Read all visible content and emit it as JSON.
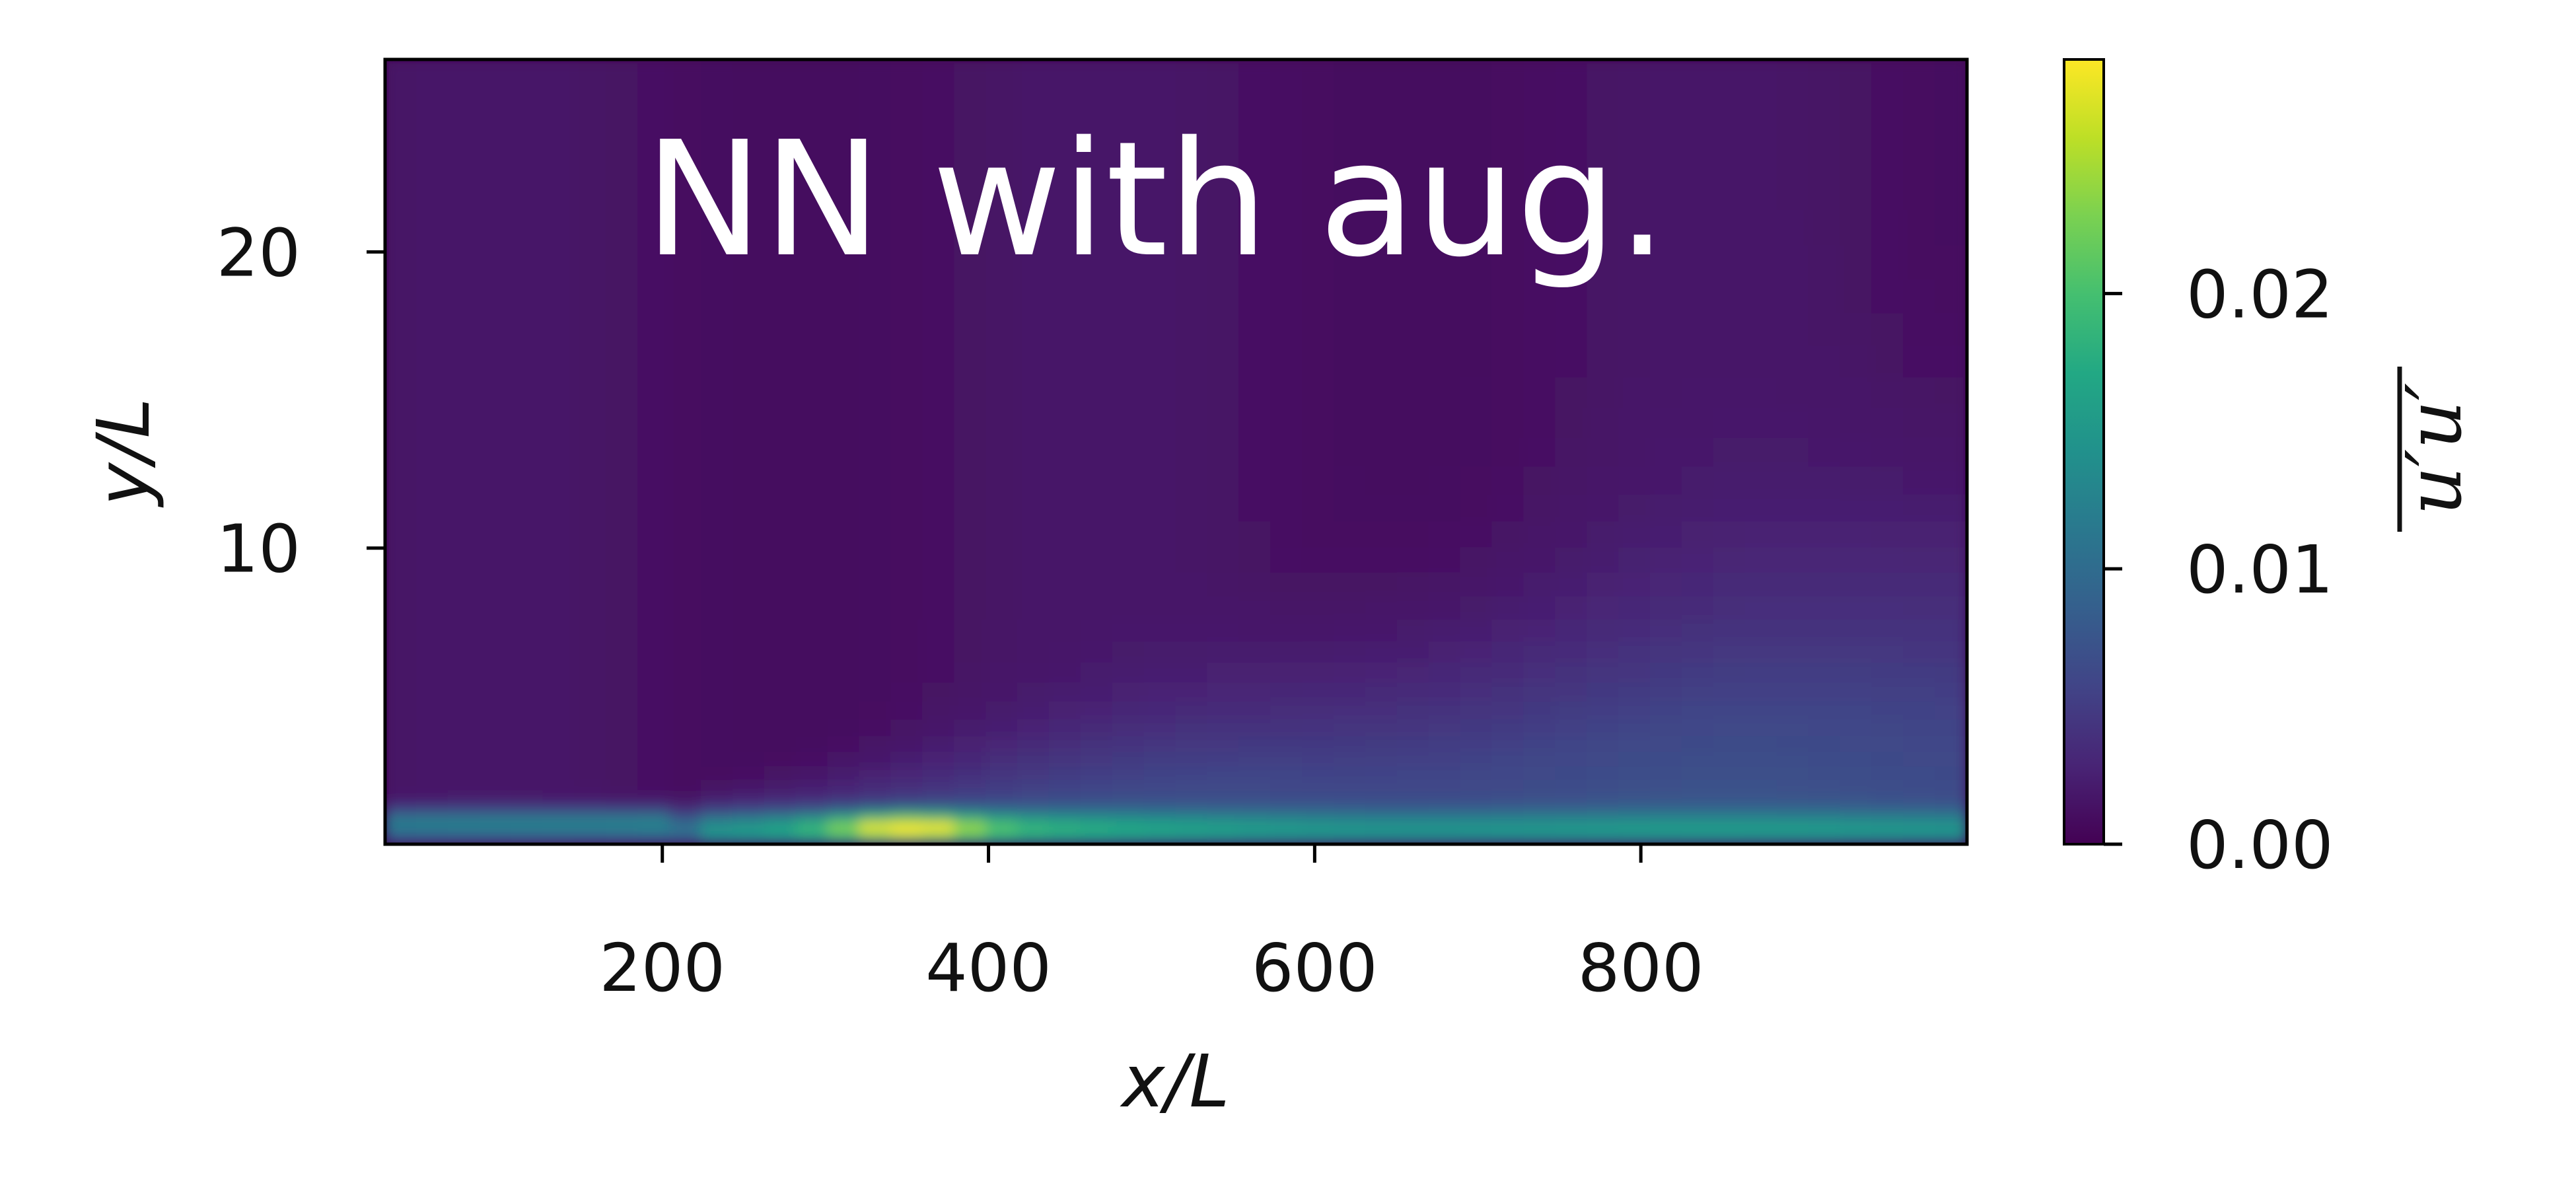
{
  "chart_data": {
    "type": "heatmap",
    "title": "NN with aug.",
    "xlabel": "x/L",
    "ylabel": "y/L",
    "colorbar_label": "u′u′",
    "colormap": "viridis",
    "xlim": [
      30,
      1000
    ],
    "ylim": [
      0,
      26.5
    ],
    "clim": [
      0,
      0.0285
    ],
    "x_ticks": [
      200,
      400,
      600,
      800
    ],
    "x_tick_labels": [
      "200",
      "400",
      "600",
      "800"
    ],
    "y_ticks": [
      10,
      20
    ],
    "y_tick_labels": [
      "10",
      "20"
    ],
    "colorbar_ticks": [
      0.0,
      0.01,
      0.02
    ],
    "colorbar_tick_labels": [
      "0.00",
      "0.01",
      "0.02"
    ],
    "features": [
      {
        "description": "peak near wall",
        "x_range": [
          300,
          420
        ],
        "y": 0.7,
        "value": 0.028
      },
      {
        "description": "wall layer",
        "x_range": [
          30,
          1000
        ],
        "y_range": [
          0,
          1.5
        ],
        "value_range": [
          0.01,
          0.018
        ]
      },
      {
        "description": "spreading shear layer",
        "x_range": [
          250,
          1000
        ],
        "y_range": [
          1,
          10
        ],
        "value_range": [
          0.004,
          0.007
        ]
      },
      {
        "description": "background",
        "value": 0.0015
      }
    ],
    "grid": false
  },
  "colors": {
    "viridis_min": "#440154",
    "viridis_max": "#fde725",
    "axis": "#000000"
  }
}
